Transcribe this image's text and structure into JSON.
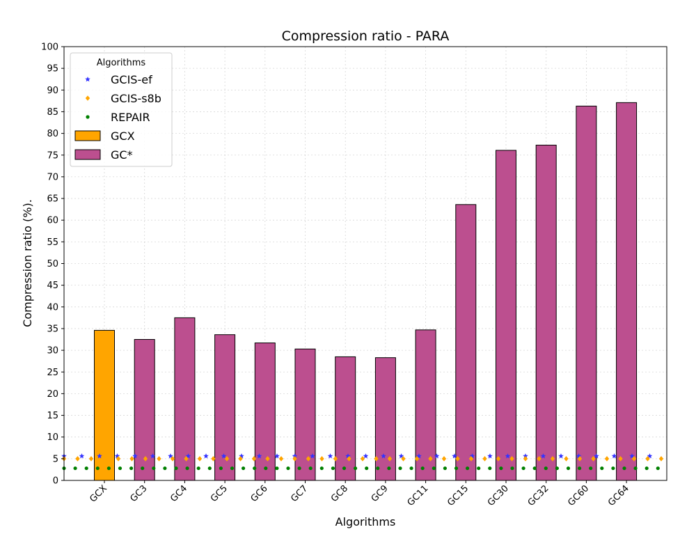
{
  "chart_data": {
    "type": "bar",
    "title": "Compression ratio -  PARA",
    "xlabel": "Algorithms",
    "ylabel": "Compression ratio (%).",
    "ylim": [
      0,
      100
    ],
    "yticks": [
      0,
      5,
      10,
      15,
      20,
      25,
      30,
      35,
      40,
      45,
      50,
      55,
      60,
      65,
      70,
      75,
      80,
      85,
      90,
      95,
      100
    ],
    "grid": true,
    "categories": [
      "GCX",
      "GC3",
      "GC4",
      "GC5",
      "GC6",
      "GC7",
      "GC8",
      "GC9",
      "GC11",
      "GC15",
      "GC30",
      "GC32",
      "GC60",
      "GC64"
    ],
    "series": [
      {
        "name": "GCX",
        "kind": "bar",
        "color": "#ffa500",
        "values": [
          34.6,
          null,
          null,
          null,
          null,
          null,
          null,
          null,
          null,
          null,
          null,
          null,
          null,
          null
        ]
      },
      {
        "name": "GC*",
        "kind": "bar",
        "color": "#bc4f8f",
        "values": [
          null,
          32.5,
          37.5,
          33.6,
          31.7,
          30.3,
          28.5,
          28.3,
          34.7,
          63.6,
          76.1,
          77.3,
          86.3,
          87.1
        ]
      },
      {
        "name": "GCIS-ef",
        "kind": "reference-line",
        "marker": "star",
        "color": "#3333ff",
        "value": 5.6
      },
      {
        "name": "GCIS-s8b",
        "kind": "reference-line",
        "marker": "diamond",
        "color": "#ffa500",
        "value": 5.0
      },
      {
        "name": "REPAIR",
        "kind": "reference-line",
        "marker": "circle",
        "color": "#008000",
        "value": 2.8
      }
    ],
    "legend": {
      "title": "Algorithms",
      "position": "top-left",
      "entries": [
        "GCIS-ef",
        "GCIS-s8b",
        "REPAIR",
        "GCX",
        "GC*"
      ]
    }
  }
}
